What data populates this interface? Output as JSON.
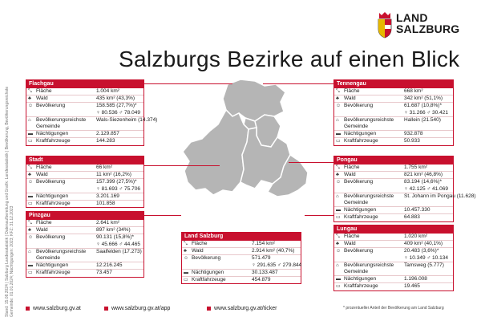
{
  "brand": {
    "line1": "LAND",
    "line2": "SALZBURG"
  },
  "title": "Salzburgs Bezirke auf einen Blick",
  "sidebar_note": "Stand: 15.08.2024 | Salzburg Landesstatistik | Datenaufbereitung und Grafik: Landesstatistik | Bevölkerung, Bevölkerungsreichste Gemeinde: 01.01.2024; Nächtigungen: 2023; KFZ: 31.12.2023",
  "cards": {
    "flachgau": {
      "name": "Flachgau",
      "rows": [
        {
          "icon": "area-icon",
          "glyph": "⤡",
          "label": "Fläche",
          "value": "1.004 km²"
        },
        {
          "icon": "forest-icon",
          "glyph": "♣",
          "label": "Wald",
          "value": "435 km² (43,3%)"
        },
        {
          "icon": "population-icon",
          "glyph": "☺",
          "label": "Bevölkerung",
          "value": "158.585 (27,7%)*",
          "value2": "♀ 80.536  ♂ 78.049"
        },
        {
          "icon": "town-icon",
          "glyph": "⌂",
          "label": "Bevölkerungsreichste Gemeinde",
          "value": "Wals-Siezenheim (14.374)"
        },
        {
          "icon": "bed-icon",
          "glyph": "▬",
          "label": "Nächtigungen",
          "value": "2.129.857"
        },
        {
          "icon": "car-icon",
          "glyph": "▭",
          "label": "Kraftfahrzeuge",
          "value": "144.283"
        }
      ]
    },
    "stadt": {
      "name": "Stadt",
      "rows": [
        {
          "icon": "area-icon",
          "glyph": "⤡",
          "label": "Fläche",
          "value": "66 km²"
        },
        {
          "icon": "forest-icon",
          "glyph": "♣",
          "label": "Wald",
          "value": "11 km² (16,2%)"
        },
        {
          "icon": "population-icon",
          "glyph": "☺",
          "label": "Bevölkerung",
          "value": "157.399 (27,5%)*",
          "value2": "♀ 81.693  ♂ 75.706"
        },
        {
          "icon": "bed-icon",
          "glyph": "▬",
          "label": "Nächtigungen",
          "value": "3.201.169"
        },
        {
          "icon": "car-icon",
          "glyph": "▭",
          "label": "Kraftfahrzeuge",
          "value": "101.858"
        }
      ]
    },
    "pinzgau": {
      "name": "Pinzgau",
      "rows": [
        {
          "icon": "area-icon",
          "glyph": "⤡",
          "label": "Fläche",
          "value": "2.641 km²"
        },
        {
          "icon": "forest-icon",
          "glyph": "♣",
          "label": "Wald",
          "value": "897 km² (34%)"
        },
        {
          "icon": "population-icon",
          "glyph": "☺",
          "label": "Bevölkerung",
          "value": "90.131 (15,8%)*",
          "value2": "♀ 45.666  ♂ 44.465"
        },
        {
          "icon": "town-icon",
          "glyph": "⌂",
          "label": "Bevölkerungsreichste Gemeinde",
          "value": "Saalfelden (17.273)"
        },
        {
          "icon": "bed-icon",
          "glyph": "▬",
          "label": "Nächtigungen",
          "value": "12.216.245"
        },
        {
          "icon": "car-icon",
          "glyph": "▭",
          "label": "Kraftfahrzeuge",
          "value": "73.457"
        }
      ]
    },
    "land": {
      "name": "Land Salzburg",
      "rows": [
        {
          "icon": "area-icon",
          "glyph": "⤡",
          "label": "Fläche",
          "value": "7.154 km²"
        },
        {
          "icon": "forest-icon",
          "glyph": "♣",
          "label": "Wald",
          "value": "2.914 km² (40,7%)"
        },
        {
          "icon": "population-icon",
          "glyph": "☺",
          "label": "Bevölkerung",
          "value": "571.479",
          "value2": "♀ 291.635  ♂ 279.844"
        },
        {
          "icon": "bed-icon",
          "glyph": "▬",
          "label": "Nächtigungen",
          "value": "30.133.487"
        },
        {
          "icon": "car-icon",
          "glyph": "▭",
          "label": "Kraftfahrzeuge",
          "value": "454.879"
        }
      ]
    },
    "tennengau": {
      "name": "Tennengau",
      "rows": [
        {
          "icon": "area-icon",
          "glyph": "⤡",
          "label": "Fläche",
          "value": "668 km²"
        },
        {
          "icon": "forest-icon",
          "glyph": "♣",
          "label": "Wald",
          "value": "342 km² (51,1%)"
        },
        {
          "icon": "population-icon",
          "glyph": "☺",
          "label": "Bevölkerung",
          "value": "61.687 (10,8%)*",
          "value2": "♀ 31.266  ♂ 30.421"
        },
        {
          "icon": "town-icon",
          "glyph": "⌂",
          "label": "Bevölkerungsreichste Gemeinde",
          "value": "Hallein (21.540)"
        },
        {
          "icon": "bed-icon",
          "glyph": "▬",
          "label": "Nächtigungen",
          "value": "932.878"
        },
        {
          "icon": "car-icon",
          "glyph": "▭",
          "label": "Kraftfahrzeuge",
          "value": "50.933"
        }
      ]
    },
    "pongau": {
      "name": "Pongau",
      "rows": [
        {
          "icon": "area-icon",
          "glyph": "⤡",
          "label": "Fläche",
          "value": "1.755 km²"
        },
        {
          "icon": "forest-icon",
          "glyph": "♣",
          "label": "Wald",
          "value": "821 km² (46,8%)"
        },
        {
          "icon": "population-icon",
          "glyph": "☺",
          "label": "Bevölkerung",
          "value": "83.194 (14,6%)*",
          "value2": "♀ 42.125  ♂ 41.069"
        },
        {
          "icon": "town-icon",
          "glyph": "⌂",
          "label": "Bevölkerungsreichste Gemeinde",
          "value": "St. Johann im Pongau (11.628)"
        },
        {
          "icon": "bed-icon",
          "glyph": "▬",
          "label": "Nächtigungen",
          "value": "10.457.330"
        },
        {
          "icon": "car-icon",
          "glyph": "▭",
          "label": "Kraftfahrzeuge",
          "value": "64.883"
        }
      ]
    },
    "lungau": {
      "name": "Lungau",
      "rows": [
        {
          "icon": "area-icon",
          "glyph": "⤡",
          "label": "Fläche",
          "value": "1.020 km²"
        },
        {
          "icon": "forest-icon",
          "glyph": "♣",
          "label": "Wald",
          "value": "409 km² (40,1%)"
        },
        {
          "icon": "population-icon",
          "glyph": "☺",
          "label": "Bevölkerung",
          "value": "20.483 (3,6%)*",
          "value2": "♀ 10.349  ♂ 10.134"
        },
        {
          "icon": "town-icon",
          "glyph": "⌂",
          "label": "Bevölkerungsreichste Gemeinde",
          "value": "Tamsweg (5.777)"
        },
        {
          "icon": "bed-icon",
          "glyph": "▬",
          "label": "Nächtigungen",
          "value": "1.196.008"
        },
        {
          "icon": "car-icon",
          "glyph": "▭",
          "label": "Kraftfahrzeuge",
          "value": "19.465"
        }
      ]
    }
  },
  "footer": {
    "links": [
      "www.salzburg.gv.at",
      "www.salzburg.gv.at/app",
      "www.salzburg.gv.at/ticker"
    ],
    "note": "* prozentueller Anteil der Bevölkerung am Land Salzburg"
  },
  "colors": {
    "accent": "#c8102e",
    "map_fill": "#b5b5b5",
    "map_border": "#ffffff"
  }
}
